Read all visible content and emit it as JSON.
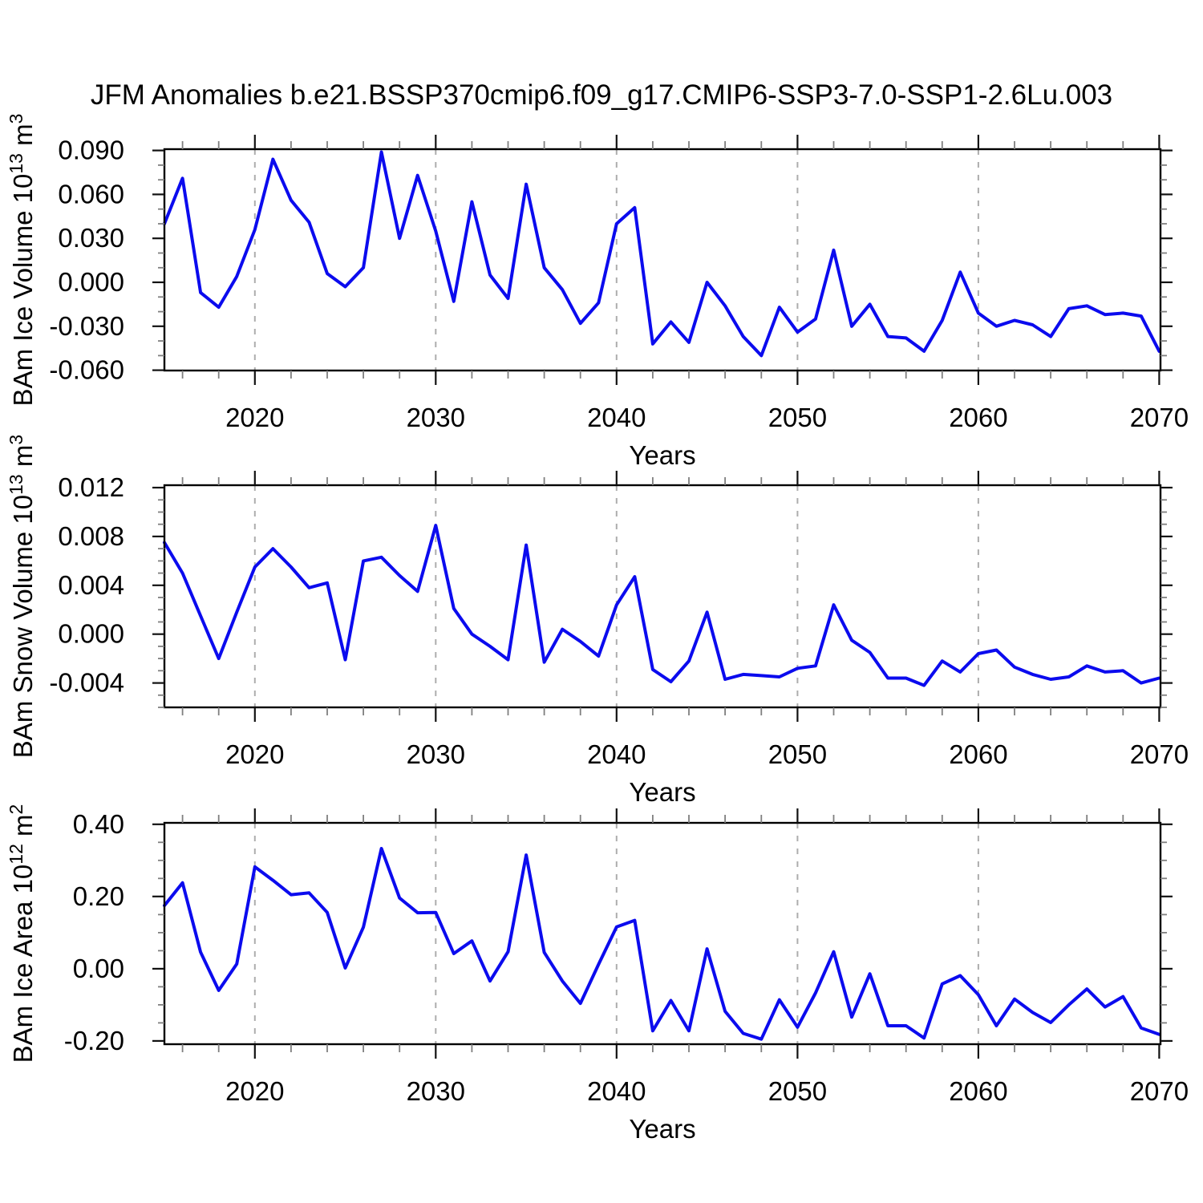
{
  "title": "JFM Anomalies b.e21.BSSP370cmip6.f09_g17.CMIP6-SSP3-7.0-SSP1-2.6Lu.003",
  "colors": {
    "line": "#0b0bee",
    "grid": "#adadad",
    "frame": "#000000"
  },
  "chart_data": [
    {
      "id": "bam-ice-volume",
      "type": "line",
      "title": "",
      "xlabel": "Years",
      "ylabel": "BAm Ice Volume 10^13 m^3",
      "ylabel_parts": [
        {
          "text": "BAm Ice Volume 10",
          "sup": false
        },
        {
          "text": "13",
          "sup": true
        },
        {
          "text": " m",
          "sup": false
        },
        {
          "text": "3",
          "sup": true
        }
      ],
      "xlim": [
        2015,
        2070.07
      ],
      "ylim": [
        -0.0602,
        0.0909
      ],
      "xticks": [
        2020,
        2030,
        2040,
        2050,
        2060,
        2070
      ],
      "xtick_labels": [
        "2020",
        "2030",
        "2040",
        "2050",
        "2060",
        "2070"
      ],
      "x_minor_step": 2,
      "grid_years": [
        2020,
        2030,
        2040,
        2050,
        2060
      ],
      "yticks": [
        0.09,
        0.06,
        0.03,
        0.0,
        -0.03,
        -0.06
      ],
      "ytick_labels": [
        "0.090",
        "0.060",
        "0.030",
        "0.000",
        "-0.030",
        "-0.060"
      ],
      "y_minor_step": 0.01,
      "grid_on": "x-dashed",
      "legend_position": "none",
      "x": [
        2015,
        2016,
        2017,
        2018,
        2019,
        2020,
        2021,
        2022,
        2023,
        2024,
        2025,
        2026,
        2027,
        2028,
        2029,
        2030,
        2031,
        2032,
        2033,
        2034,
        2035,
        2036,
        2037,
        2038,
        2039,
        2040,
        2041,
        2042,
        2043,
        2044,
        2045,
        2046,
        2047,
        2048,
        2049,
        2050,
        2051,
        2052,
        2053,
        2054,
        2055,
        2056,
        2057,
        2058,
        2059,
        2060,
        2061,
        2062,
        2063,
        2064,
        2065,
        2066,
        2067,
        2068,
        2069,
        2070
      ],
      "values": [
        0.04,
        0.071,
        -0.007,
        -0.017,
        0.004,
        0.036,
        0.084,
        0.056,
        0.041,
        0.006,
        -0.003,
        0.01,
        0.089,
        0.03,
        0.073,
        0.035,
        -0.013,
        0.055,
        0.005,
        -0.011,
        0.067,
        0.01,
        -0.005,
        -0.028,
        -0.014,
        0.04,
        0.051,
        -0.042,
        -0.027,
        -0.041,
        0.0,
        -0.016,
        -0.037,
        -0.05,
        -0.017,
        -0.034,
        -0.025,
        0.022,
        -0.03,
        -0.015,
        -0.037,
        -0.038,
        -0.047,
        -0.026,
        0.007,
        -0.021,
        -0.03,
        -0.026,
        -0.029,
        -0.037,
        -0.018,
        -0.016,
        -0.022,
        -0.021,
        -0.023,
        -0.047
      ]
    },
    {
      "id": "bam-snow-volume",
      "type": "line",
      "title": "",
      "xlabel": "Years",
      "ylabel": "BAm Snow Volume 10^13 m^3",
      "ylabel_parts": [
        {
          "text": "BAm Snow Volume 10",
          "sup": false
        },
        {
          "text": "13",
          "sup": true
        },
        {
          "text": " m",
          "sup": false
        },
        {
          "text": "3",
          "sup": true
        }
      ],
      "xlim": [
        2015,
        2070.07
      ],
      "ylim": [
        -0.006,
        0.0122
      ],
      "xticks": [
        2020,
        2030,
        2040,
        2050,
        2060,
        2070
      ],
      "xtick_labels": [
        "2020",
        "2030",
        "2040",
        "2050",
        "2060",
        "2070"
      ],
      "x_minor_step": 2,
      "grid_years": [
        2020,
        2030,
        2040,
        2050,
        2060
      ],
      "yticks": [
        0.012,
        0.008,
        0.004,
        0.0,
        -0.004
      ],
      "ytick_labels": [
        "0.012",
        "0.008",
        "0.004",
        "0.000",
        "-0.004"
      ],
      "y_minor_step": 0.001,
      "grid_on": "x-dashed",
      "legend_position": "none",
      "x": [
        2015,
        2016,
        2017,
        2018,
        2019,
        2020,
        2021,
        2022,
        2023,
        2024,
        2025,
        2026,
        2027,
        2028,
        2029,
        2030,
        2031,
        2032,
        2033,
        2034,
        2035,
        2036,
        2037,
        2038,
        2039,
        2040,
        2041,
        2042,
        2043,
        2044,
        2045,
        2046,
        2047,
        2048,
        2049,
        2050,
        2051,
        2052,
        2053,
        2054,
        2055,
        2056,
        2057,
        2058,
        2059,
        2060,
        2061,
        2062,
        2063,
        2064,
        2065,
        2066,
        2067,
        2068,
        2069,
        2070
      ],
      "values": [
        0.0075,
        0.005,
        0.0015,
        -0.002,
        0.0018,
        0.0055,
        0.007,
        0.0055,
        0.0038,
        0.0042,
        -0.0021,
        0.006,
        0.0063,
        0.0048,
        0.0035,
        0.0089,
        0.0021,
        0.0,
        -0.001,
        -0.0021,
        0.0073,
        -0.0023,
        0.0004,
        -0.0006,
        -0.0018,
        0.0024,
        0.0047,
        -0.0029,
        -0.0039,
        -0.0022,
        0.0018,
        -0.0037,
        -0.0033,
        -0.0034,
        -0.0035,
        -0.0028,
        -0.0026,
        0.0024,
        -0.0005,
        -0.0015,
        -0.0036,
        -0.0036,
        -0.0042,
        -0.0022,
        -0.0031,
        -0.0016,
        -0.0013,
        -0.0027,
        -0.0033,
        -0.0037,
        -0.0035,
        -0.0026,
        -0.0031,
        -0.003,
        -0.004,
        -0.0036
      ]
    },
    {
      "id": "bam-ice-area",
      "type": "line",
      "title": "",
      "xlabel": "Years",
      "ylabel": "BAm Ice Area 10^12 m^2",
      "ylabel_parts": [
        {
          "text": "BAm Ice Area 10",
          "sup": false
        },
        {
          "text": "12",
          "sup": true
        },
        {
          "text": " m",
          "sup": false
        },
        {
          "text": "2",
          "sup": true
        }
      ],
      "xlim": [
        2015,
        2070.07
      ],
      "ylim": [
        -0.209,
        0.404
      ],
      "xticks": [
        2020,
        2030,
        2040,
        2050,
        2060,
        2070
      ],
      "xtick_labels": [
        "2020",
        "2030",
        "2040",
        "2050",
        "2060",
        "2070"
      ],
      "x_minor_step": 2,
      "grid_years": [
        2020,
        2030,
        2040,
        2050,
        2060
      ],
      "yticks": [
        0.4,
        0.2,
        0.0,
        -0.2
      ],
      "ytick_labels": [
        "0.40",
        "0.20",
        "0.00",
        "-0.20"
      ],
      "y_minor_step": 0.05,
      "grid_on": "x-dashed",
      "legend_position": "none",
      "x": [
        2015,
        2016,
        2017,
        2018,
        2019,
        2020,
        2021,
        2022,
        2023,
        2024,
        2025,
        2026,
        2027,
        2028,
        2029,
        2030,
        2031,
        2032,
        2033,
        2034,
        2035,
        2036,
        2037,
        2038,
        2039,
        2040,
        2041,
        2042,
        2043,
        2044,
        2045,
        2046,
        2047,
        2048,
        2049,
        2050,
        2051,
        2052,
        2053,
        2054,
        2055,
        2056,
        2057,
        2058,
        2059,
        2060,
        2061,
        2062,
        2063,
        2064,
        2065,
        2066,
        2067,
        2068,
        2069,
        2070
      ],
      "values": [
        0.175,
        0.238,
        0.046,
        -0.06,
        0.013,
        0.282,
        0.245,
        0.205,
        0.21,
        0.156,
        0.002,
        0.115,
        0.333,
        0.196,
        0.155,
        0.156,
        0.042,
        0.077,
        -0.034,
        0.047,
        0.315,
        0.045,
        -0.034,
        -0.096,
        0.012,
        0.116,
        0.134,
        -0.172,
        -0.088,
        -0.172,
        0.055,
        -0.118,
        -0.179,
        -0.195,
        -0.086,
        -0.162,
        -0.067,
        0.047,
        -0.134,
        -0.014,
        -0.158,
        -0.158,
        -0.192,
        -0.042,
        -0.019,
        -0.072,
        -0.158,
        -0.084,
        -0.121,
        -0.149,
        -0.1,
        -0.056,
        -0.106,
        -0.077,
        -0.164,
        -0.182
      ]
    }
  ]
}
